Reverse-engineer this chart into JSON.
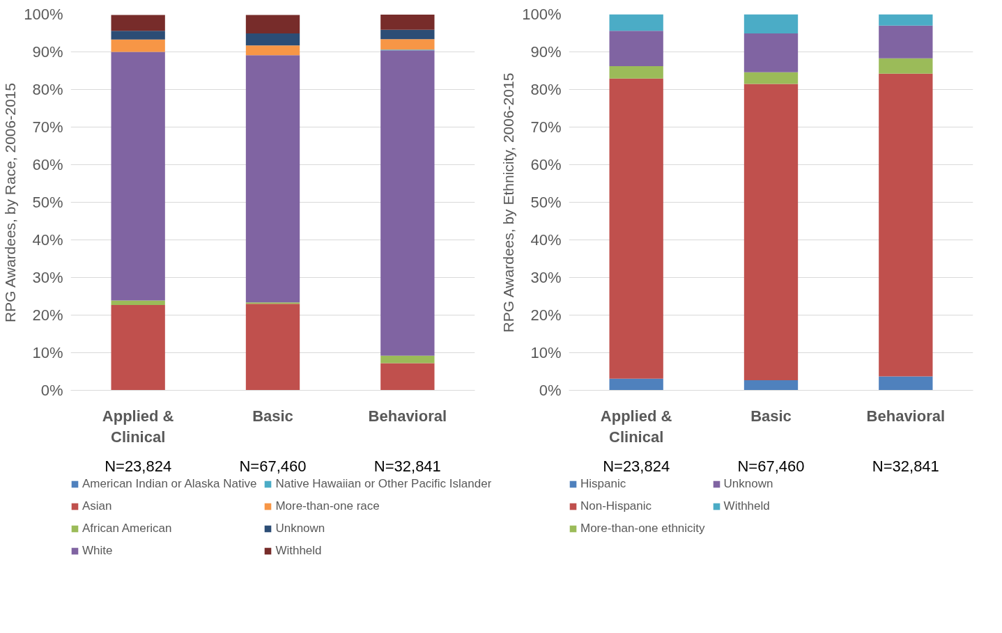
{
  "chart_data": [
    {
      "type": "bar",
      "stacked": true,
      "ylabel": "RPG Awardees, by Race, 2006-2015",
      "categories": [
        "Applied & Clinical",
        "Basic",
        "Behavioral"
      ],
      "series": [
        {
          "name": "American Indian or Alaska Native",
          "color": "#4f81bd",
          "values": [
            null,
            null,
            null
          ]
        },
        {
          "name": "Asian",
          "color": "#c0504d",
          "values": [
            22.7,
            23.0,
            7.2
          ]
        },
        {
          "name": "African American",
          "color": "#9bbb59",
          "values": [
            1.2,
            0.4,
            2.0
          ]
        },
        {
          "name": "White",
          "color": "#8064a2",
          "values": [
            66.1,
            65.7,
            81.2
          ]
        },
        {
          "name": "Native Hawaiian or Other Pacific Islander",
          "color": "#4bacc6",
          "values": [
            null,
            null,
            0.2
          ]
        },
        {
          "name": "More-than-one race",
          "color": "#f79646",
          "values": [
            3.3,
            2.6,
            2.8
          ]
        },
        {
          "name": "Unknown",
          "color": "#2c4d75",
          "values": [
            2.3,
            3.2,
            2.5
          ]
        },
        {
          "name": "Withheld",
          "color": "#772c2a",
          "values": [
            4.2,
            4.9,
            4.0
          ]
        }
      ],
      "ylim": [
        0,
        100
      ],
      "yticks": [
        {
          "value": 0,
          "label": "0%"
        },
        {
          "value": 10,
          "label": "10%"
        },
        {
          "value": 20,
          "label": "20%"
        },
        {
          "value": 30,
          "label": "30%"
        },
        {
          "value": 40,
          "label": "40%"
        },
        {
          "value": 50,
          "label": "50%"
        },
        {
          "value": 60,
          "label": "60%"
        },
        {
          "value": 70,
          "label": "70%"
        },
        {
          "value": 80,
          "label": "80%"
        },
        {
          "value": 90,
          "label": "90%"
        },
        {
          "value": 100,
          "label": "100%"
        }
      ],
      "grid": "y",
      "legend": "bottom",
      "annotations": [
        "N=23,824",
        "N=67,460",
        "N=32,841"
      ]
    },
    {
      "type": "bar",
      "stacked": true,
      "ylabel": "RPG Awardees, by Ethnicity, 2006-2015",
      "categories": [
        "Applied & Clinical",
        "Basic",
        "Behavioral"
      ],
      "series": [
        {
          "name": "Hispanic",
          "color": "#4f81bd",
          "values": [
            3.1,
            2.7,
            3.7
          ]
        },
        {
          "name": "Non-Hispanic",
          "color": "#c0504d",
          "values": [
            79.8,
            78.8,
            80.5
          ]
        },
        {
          "name": "More-than-one ethnicity",
          "color": "#9bbb59",
          "values": [
            3.3,
            3.1,
            4.1
          ]
        },
        {
          "name": "Unknown",
          "color": "#8064a2",
          "values": [
            9.4,
            10.3,
            8.7
          ]
        },
        {
          "name": "Withheld",
          "color": "#4bacc6",
          "values": [
            4.4,
            5.1,
            3.0
          ]
        }
      ],
      "ylim": [
        0,
        100
      ],
      "yticks": [
        {
          "value": 0,
          "label": "0%"
        },
        {
          "value": 10,
          "label": "10%"
        },
        {
          "value": 20,
          "label": "20%"
        },
        {
          "value": 30,
          "label": "30%"
        },
        {
          "value": 40,
          "label": "40%"
        },
        {
          "value": 50,
          "label": "50%"
        },
        {
          "value": 60,
          "label": "60%"
        },
        {
          "value": 70,
          "label": "70%"
        },
        {
          "value": 80,
          "label": "80%"
        },
        {
          "value": 90,
          "label": "90%"
        },
        {
          "value": 100,
          "label": "100%"
        }
      ],
      "grid": "y",
      "legend": "bottom",
      "annotations": [
        "N=23,824",
        "N=67,460",
        "N=32,841"
      ]
    }
  ]
}
